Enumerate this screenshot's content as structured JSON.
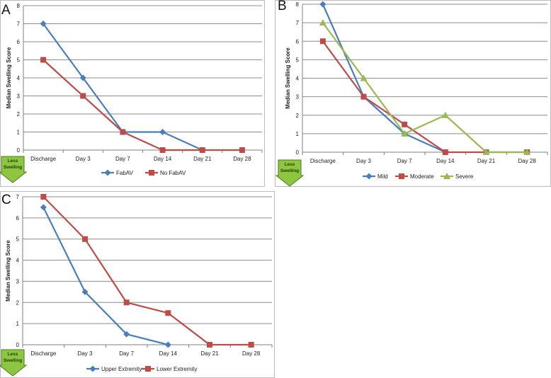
{
  "figure": {
    "name": "median-swelling-score-figure"
  },
  "less_swelling_label": [
    "Less",
    "Swelling"
  ],
  "colors": {
    "grid": "#8c8c8c",
    "axis": "#7f7f7f",
    "text": "#222222",
    "blue": "#4a7ebb",
    "red": "#be4b48",
    "green": "#98b954",
    "badge_fill": "#8dc63f",
    "badge_stroke": "#4e7a1c"
  },
  "chart_data": [
    {
      "panel": "A",
      "type": "line",
      "ylabel": "Median Swelling Score",
      "xlabel": "",
      "ylim": [
        0,
        8
      ],
      "yticks": [
        0,
        1,
        2,
        3,
        4,
        5,
        6,
        7,
        8
      ],
      "categories": [
        "Discharge",
        "Day 3",
        "Day 7",
        "Day 14",
        "Day 21",
        "Day 28"
      ],
      "legend_position": "bottom",
      "series": [
        {
          "name": "FabAV",
          "color": "#4a7ebb",
          "marker": "diamond",
          "values": [
            7,
            4,
            1,
            1,
            0,
            null
          ]
        },
        {
          "name": "No FabAV",
          "color": "#be4b48",
          "marker": "square",
          "values": [
            5,
            3,
            1,
            0,
            0,
            0
          ]
        }
      ]
    },
    {
      "panel": "B",
      "type": "line",
      "ylabel": "Median Swelling Score",
      "xlabel": "",
      "ylim": [
        0,
        8
      ],
      "yticks": [
        0,
        1,
        2,
        3,
        4,
        5,
        6,
        7,
        8
      ],
      "categories": [
        "Discharge",
        "Day 3",
        "Day 7",
        "Day 14",
        "Day 21",
        "Day 28"
      ],
      "legend_position": "bottom",
      "series": [
        {
          "name": "Mild",
          "color": "#4a7ebb",
          "marker": "diamond",
          "values": [
            8,
            3,
            1,
            0,
            null,
            null
          ]
        },
        {
          "name": "Moderate",
          "color": "#be4b48",
          "marker": "square",
          "values": [
            6,
            3,
            1.5,
            0,
            0,
            0
          ]
        },
        {
          "name": "Severe",
          "color": "#98b954",
          "marker": "triangle",
          "values": [
            7,
            4,
            1,
            2,
            0,
            0
          ]
        }
      ]
    },
    {
      "panel": "C",
      "type": "line",
      "ylabel": "Median Swelling Score",
      "xlabel": "",
      "ylim": [
        0,
        7
      ],
      "yticks": [
        0,
        1,
        2,
        3,
        4,
        5,
        6,
        7
      ],
      "categories": [
        "Discharge",
        "Day 3",
        "Day 7",
        "Day 14",
        "Day 21",
        "Day 28"
      ],
      "legend_position": "bottom",
      "series": [
        {
          "name": "Upper Extremity",
          "color": "#4a7ebb",
          "marker": "diamond",
          "values": [
            6.5,
            2.5,
            0.5,
            0,
            null,
            null
          ]
        },
        {
          "name": "Lower Extremity",
          "color": "#be4b48",
          "marker": "square",
          "values": [
            7,
            5,
            2,
            1.5,
            0,
            0
          ]
        }
      ]
    }
  ]
}
